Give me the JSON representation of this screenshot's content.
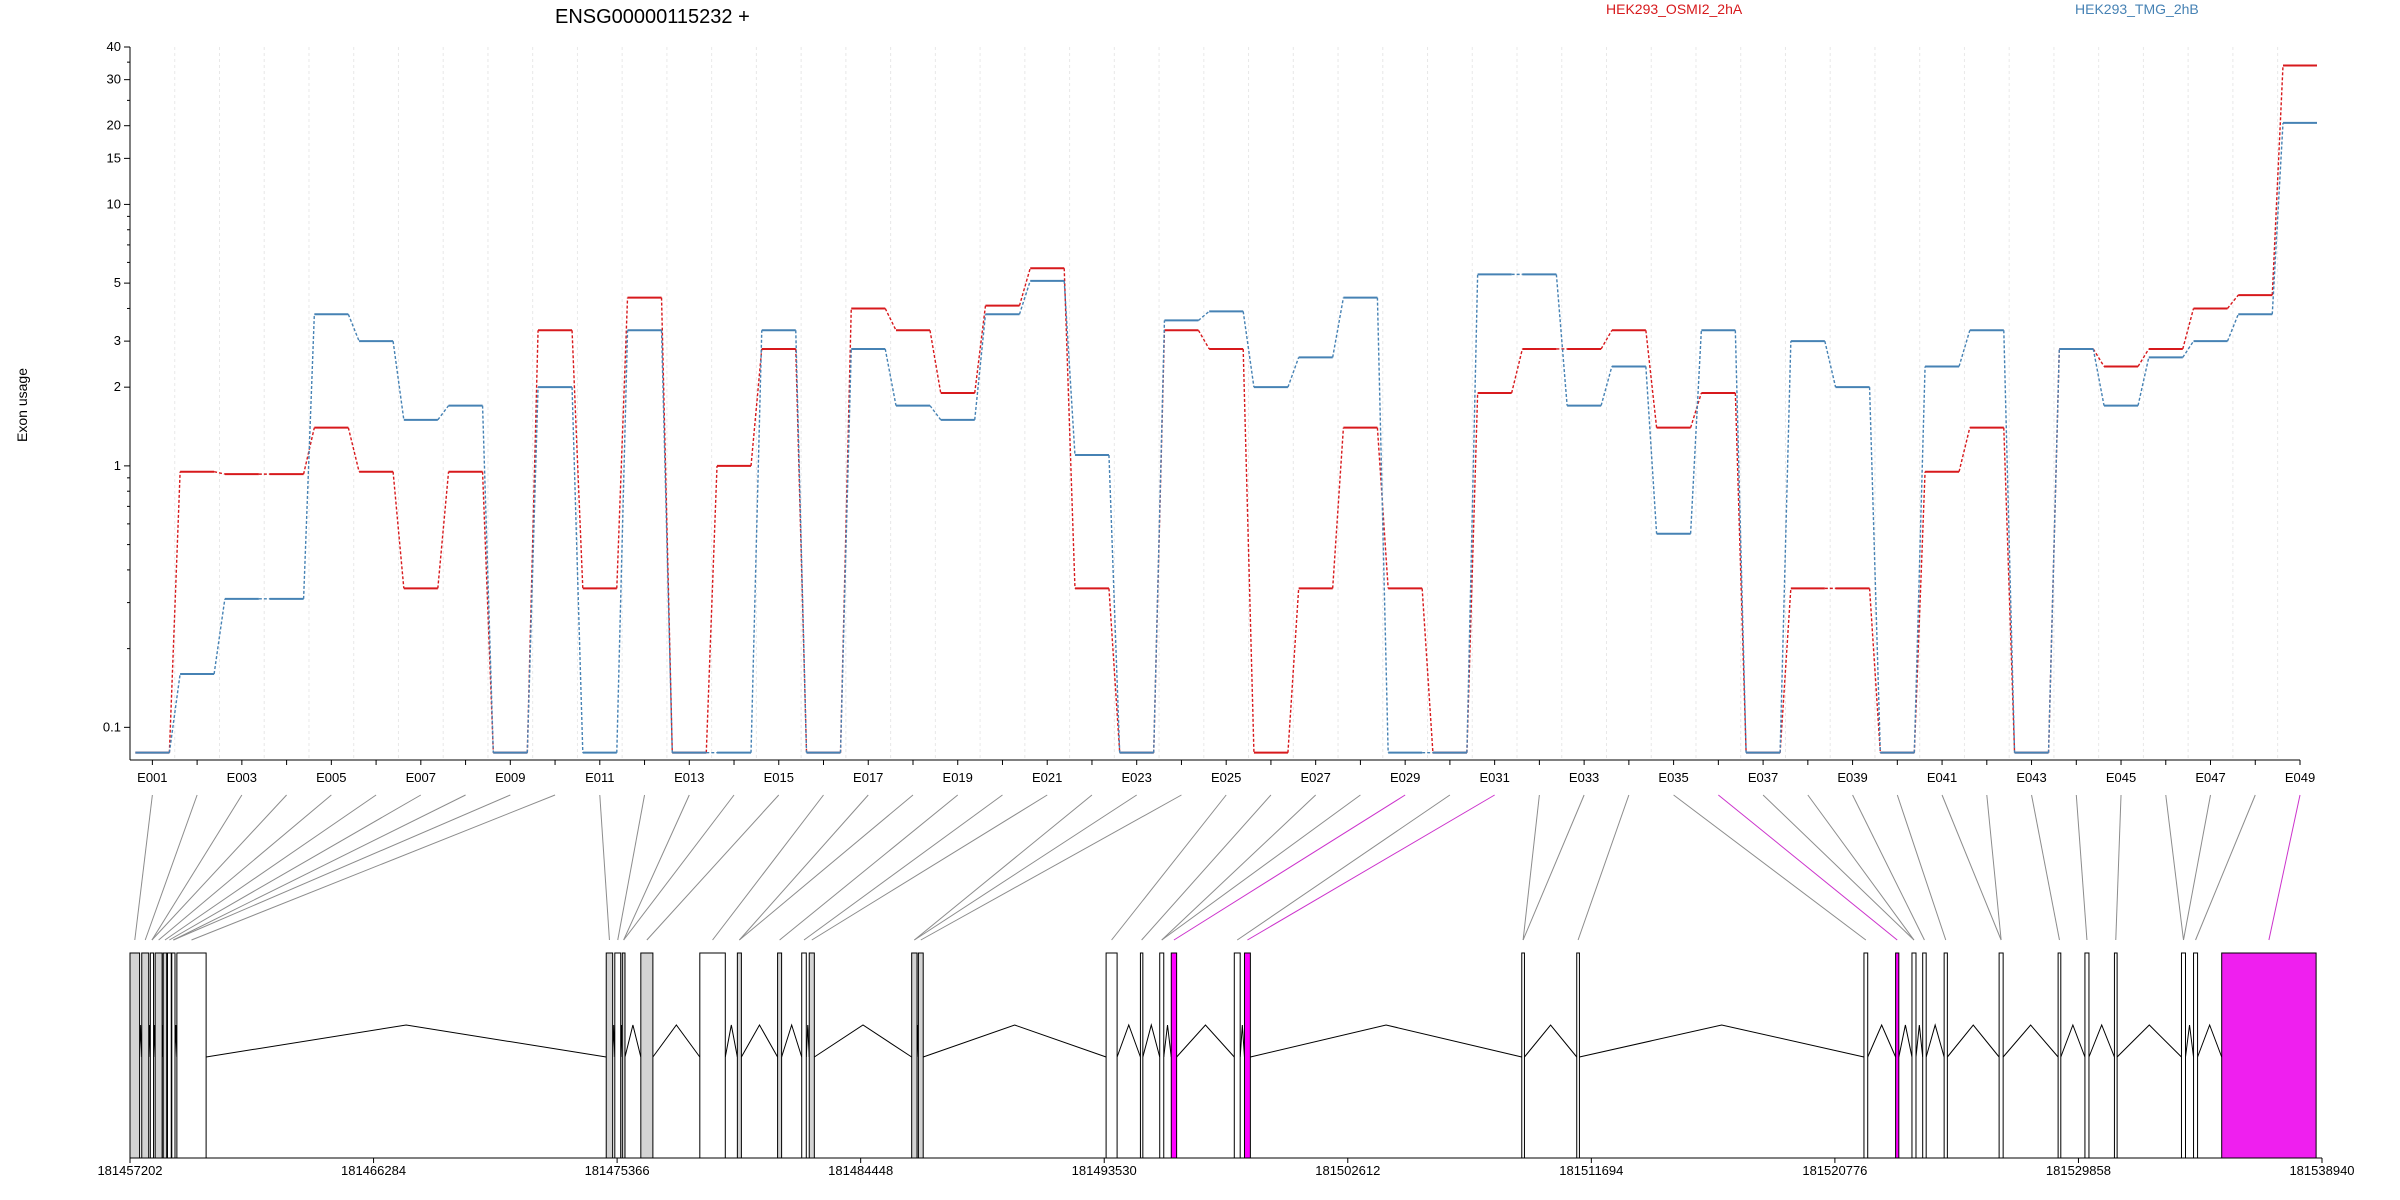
{
  "chart_data": {
    "type": "line",
    "title": "ENSG00000115232 +",
    "ylabel": "Exon usage",
    "xlabel": "",
    "yscale": "log",
    "ylim": [
      0.075,
      40
    ],
    "ytick_labels": [
      "0.1",
      "1",
      "2",
      "3",
      "5",
      "10",
      "15",
      "20",
      "30",
      "40"
    ],
    "ytick_values": [
      0.1,
      1,
      2,
      3,
      5,
      10,
      15,
      20,
      30,
      40
    ],
    "grid": true,
    "legend_placement": "top",
    "exon_labels": [
      "E001",
      "E003",
      "E005",
      "E007",
      "E009",
      "E011",
      "E013",
      "E015",
      "E017",
      "E019",
      "E021",
      "E023",
      "E025",
      "E027",
      "E029",
      "E031",
      "E033",
      "E035",
      "E037",
      "E039",
      "E041",
      "E043",
      "E045",
      "E047",
      "E049"
    ],
    "exons": [
      "E001",
      "E002",
      "E003",
      "E004",
      "E005",
      "E006",
      "E007",
      "E008",
      "E009",
      "E010",
      "E011",
      "E012",
      "E013",
      "E014",
      "E015",
      "E016",
      "E017",
      "E018",
      "E019",
      "E020",
      "E021",
      "E022",
      "E023",
      "E024",
      "E025",
      "E026",
      "E027",
      "E028",
      "E029",
      "E030",
      "E031",
      "E032",
      "E033",
      "E034",
      "E035",
      "E036",
      "E037",
      "E038",
      "E039",
      "E040",
      "E041",
      "E042",
      "E043",
      "E044",
      "E045",
      "E046",
      "E047",
      "E048",
      "E049"
    ],
    "series": [
      {
        "name": "HEK293_OSMI2_2hA",
        "color": "#d7191c",
        "values": [
          0.08,
          0.95,
          0.93,
          0.93,
          1.4,
          0.95,
          0.34,
          0.95,
          0.08,
          3.3,
          0.34,
          4.4,
          0.08,
          1.0,
          2.8,
          0.08,
          4.0,
          3.3,
          1.9,
          4.1,
          5.7,
          0.34,
          0.08,
          3.3,
          2.8,
          0.08,
          0.34,
          1.4,
          0.34,
          0.08,
          1.9,
          2.8,
          2.8,
          3.3,
          1.4,
          1.9,
          0.08,
          0.34,
          0.34,
          0.08,
          0.95,
          1.4,
          0.08,
          2.8,
          2.4,
          2.8,
          4.0,
          4.5,
          34.0
        ]
      },
      {
        "name": "HEK293_TMG_2hB",
        "color": "#4682b4",
        "values": [
          0.08,
          0.16,
          0.31,
          0.31,
          3.8,
          3.0,
          1.5,
          1.7,
          0.08,
          2.0,
          0.08,
          3.3,
          0.08,
          0.08,
          3.3,
          0.08,
          2.8,
          1.7,
          1.5,
          3.8,
          5.1,
          1.1,
          0.08,
          3.6,
          3.9,
          2.0,
          2.6,
          4.4,
          0.08,
          0.08,
          5.4,
          5.4,
          1.7,
          2.4,
          0.55,
          3.3,
          0.08,
          3.0,
          2.0,
          0.08,
          2.4,
          3.3,
          0.08,
          2.8,
          1.7,
          2.6,
          3.0,
          3.8,
          20.5
        ]
      }
    ],
    "genomic_axis": {
      "tick_labels": [
        "181457202",
        "181466284",
        "181475366",
        "181484448",
        "181493530",
        "181502612",
        "181511694",
        "181520776",
        "181529858",
        "181538940"
      ],
      "range": [
        181457202,
        181538940
      ]
    },
    "gene_model": {
      "exon_blocks": [
        {
          "start": 181457202,
          "end": 181457560,
          "fill": "#d3d3d3"
        },
        {
          "start": 181457640,
          "end": 181457900,
          "fill": "#d3d3d3"
        },
        {
          "start": 181457960,
          "end": 181458080,
          "fill": "#ffffff"
        },
        {
          "start": 181458140,
          "end": 181458400,
          "fill": "#d3d3d3"
        },
        {
          "start": 181458440,
          "end": 181458570,
          "fill": "#d3d3d3"
        },
        {
          "start": 181458600,
          "end": 181458740,
          "fill": "#ffffff"
        },
        {
          "start": 181458760,
          "end": 181458880,
          "fill": "#ffffff"
        },
        {
          "start": 181458950,
          "end": 181460040,
          "fill": "#ffffff"
        },
        {
          "start": 181474960,
          "end": 181475200,
          "fill": "#d3d3d3"
        },
        {
          "start": 181475280,
          "end": 181475500,
          "fill": "#ffffff"
        },
        {
          "start": 181475560,
          "end": 181475660,
          "fill": "#d3d3d3"
        },
        {
          "start": 181476250,
          "end": 181476700,
          "fill": "#d3d3d3"
        },
        {
          "start": 181478450,
          "end": 181479400,
          "fill": "#ffffff"
        },
        {
          "start": 181479850,
          "end": 181480000,
          "fill": "#d3d3d3"
        },
        {
          "start": 181481350,
          "end": 181481500,
          "fill": "#d3d3d3"
        },
        {
          "start": 181482250,
          "end": 181482420,
          "fill": "#ffffff"
        },
        {
          "start": 181482530,
          "end": 181482720,
          "fill": "#d3d3d3"
        },
        {
          "start": 181486350,
          "end": 181486550,
          "fill": "#d3d3d3"
        },
        {
          "start": 181486600,
          "end": 181486780,
          "fill": "#d3d3d3"
        },
        {
          "start": 181493600,
          "end": 181494010,
          "fill": "#ffffff"
        },
        {
          "start": 181494880,
          "end": 181494970,
          "fill": "#ffffff"
        },
        {
          "start": 181495600,
          "end": 181495750,
          "fill": "#ffffff"
        },
        {
          "start": 181496030,
          "end": 181496230,
          "fill": "#ff00ff"
        },
        {
          "start": 181498380,
          "end": 181498600,
          "fill": "#ffffff"
        },
        {
          "start": 181498760,
          "end": 181498980,
          "fill": "#ff00ff"
        },
        {
          "start": 181509100,
          "end": 181509200,
          "fill": "#ffffff"
        },
        {
          "start": 181511150,
          "end": 181511250,
          "fill": "#ffffff"
        },
        {
          "start": 181521860,
          "end": 181522000,
          "fill": "#ffffff"
        },
        {
          "start": 181523040,
          "end": 181523160,
          "fill": "#ff00ff"
        },
        {
          "start": 181523650,
          "end": 181523800,
          "fill": "#ffffff"
        },
        {
          "start": 181524050,
          "end": 181524180,
          "fill": "#ffffff"
        },
        {
          "start": 181524850,
          "end": 181524970,
          "fill": "#ffffff"
        },
        {
          "start": 181526900,
          "end": 181527050,
          "fill": "#ffffff"
        },
        {
          "start": 181529100,
          "end": 181529200,
          "fill": "#ffffff"
        },
        {
          "start": 181530100,
          "end": 181530250,
          "fill": "#ffffff"
        },
        {
          "start": 181531200,
          "end": 181531300,
          "fill": "#ffffff"
        },
        {
          "start": 181533700,
          "end": 181533850,
          "fill": "#ffffff"
        },
        {
          "start": 181534150,
          "end": 181534300,
          "fill": "#ffffff"
        },
        {
          "start": 181535200,
          "end": 181538720,
          "fill": "#ef1fef"
        }
      ]
    }
  }
}
